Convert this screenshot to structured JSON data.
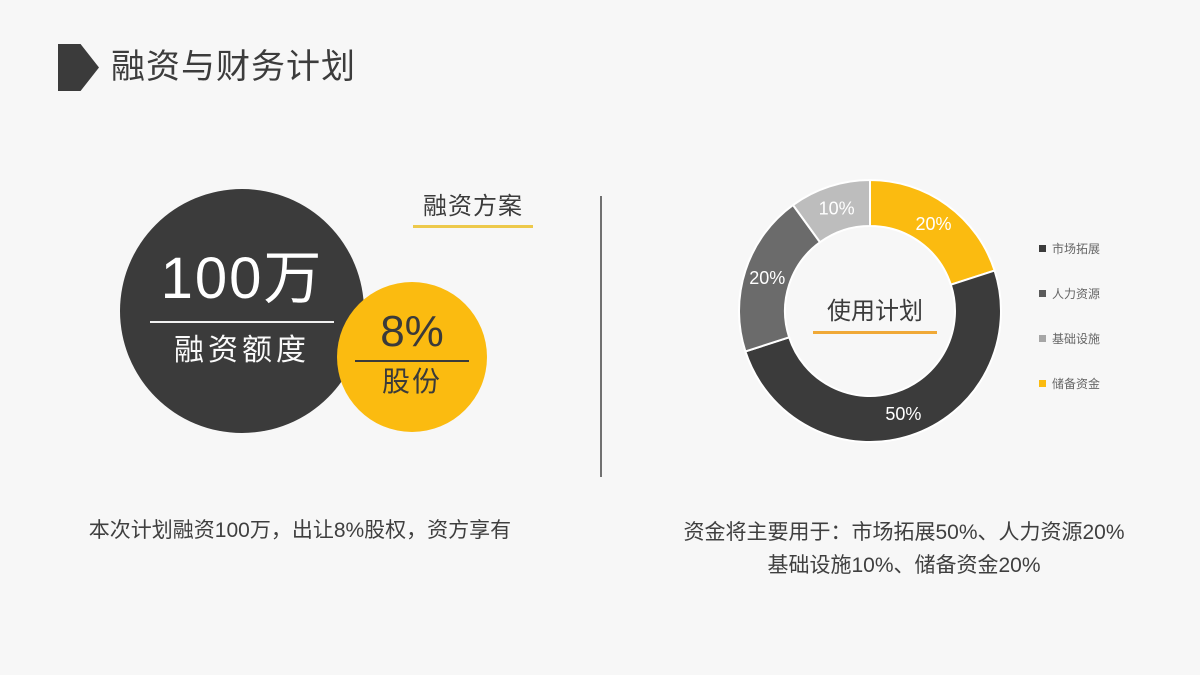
{
  "slide": {
    "title": "融资与财务计划",
    "background": "#F7F7F7"
  },
  "left_panel": {
    "badge": "融资方案",
    "amount": "100万",
    "amount_caption": "融资额度",
    "equity": "8%",
    "equity_caption": "股份",
    "footer": "本次计划融资100万，出让8%股权，资方享有"
  },
  "right_panel": {
    "center_label": "使用计划",
    "footer_line1": "资金将主要用于：市场拓展50%、人力资源20%",
    "footer_line2": "基础设施10%、储备资金20%"
  },
  "chart_data": {
    "type": "pie",
    "variant": "donut",
    "title": "使用计划",
    "start_angle_deg": 0,
    "direction": "clockwise",
    "segments": [
      {
        "label": "储备资金",
        "value": 20,
        "display": "20%",
        "color": "#FBBB10"
      },
      {
        "label": "市场拓展",
        "value": 50,
        "display": "50%",
        "color": "#3B3B3B"
      },
      {
        "label": "人力资源",
        "value": 20,
        "display": "20%",
        "color": "#6B6B6B"
      },
      {
        "label": "基础设施",
        "value": 10,
        "display": "10%",
        "color": "#BDBDBD"
      }
    ],
    "label_color": "#FFFFFF",
    "legend": {
      "position": "right",
      "items": [
        {
          "label": "市场拓展",
          "color": "#3B3B3B"
        },
        {
          "label": "人力资源",
          "color": "#5A5A5A"
        },
        {
          "label": "基础设施",
          "color": "#A6A6A6"
        },
        {
          "label": "储备资金",
          "color": "#FBBB10"
        }
      ]
    }
  },
  "colors": {
    "accent_yellow": "#FBBB10",
    "dark": "#3B3B3B",
    "badge_underline": "#EDC94B",
    "center_underline": "#F0A937",
    "divider": "#717171"
  }
}
